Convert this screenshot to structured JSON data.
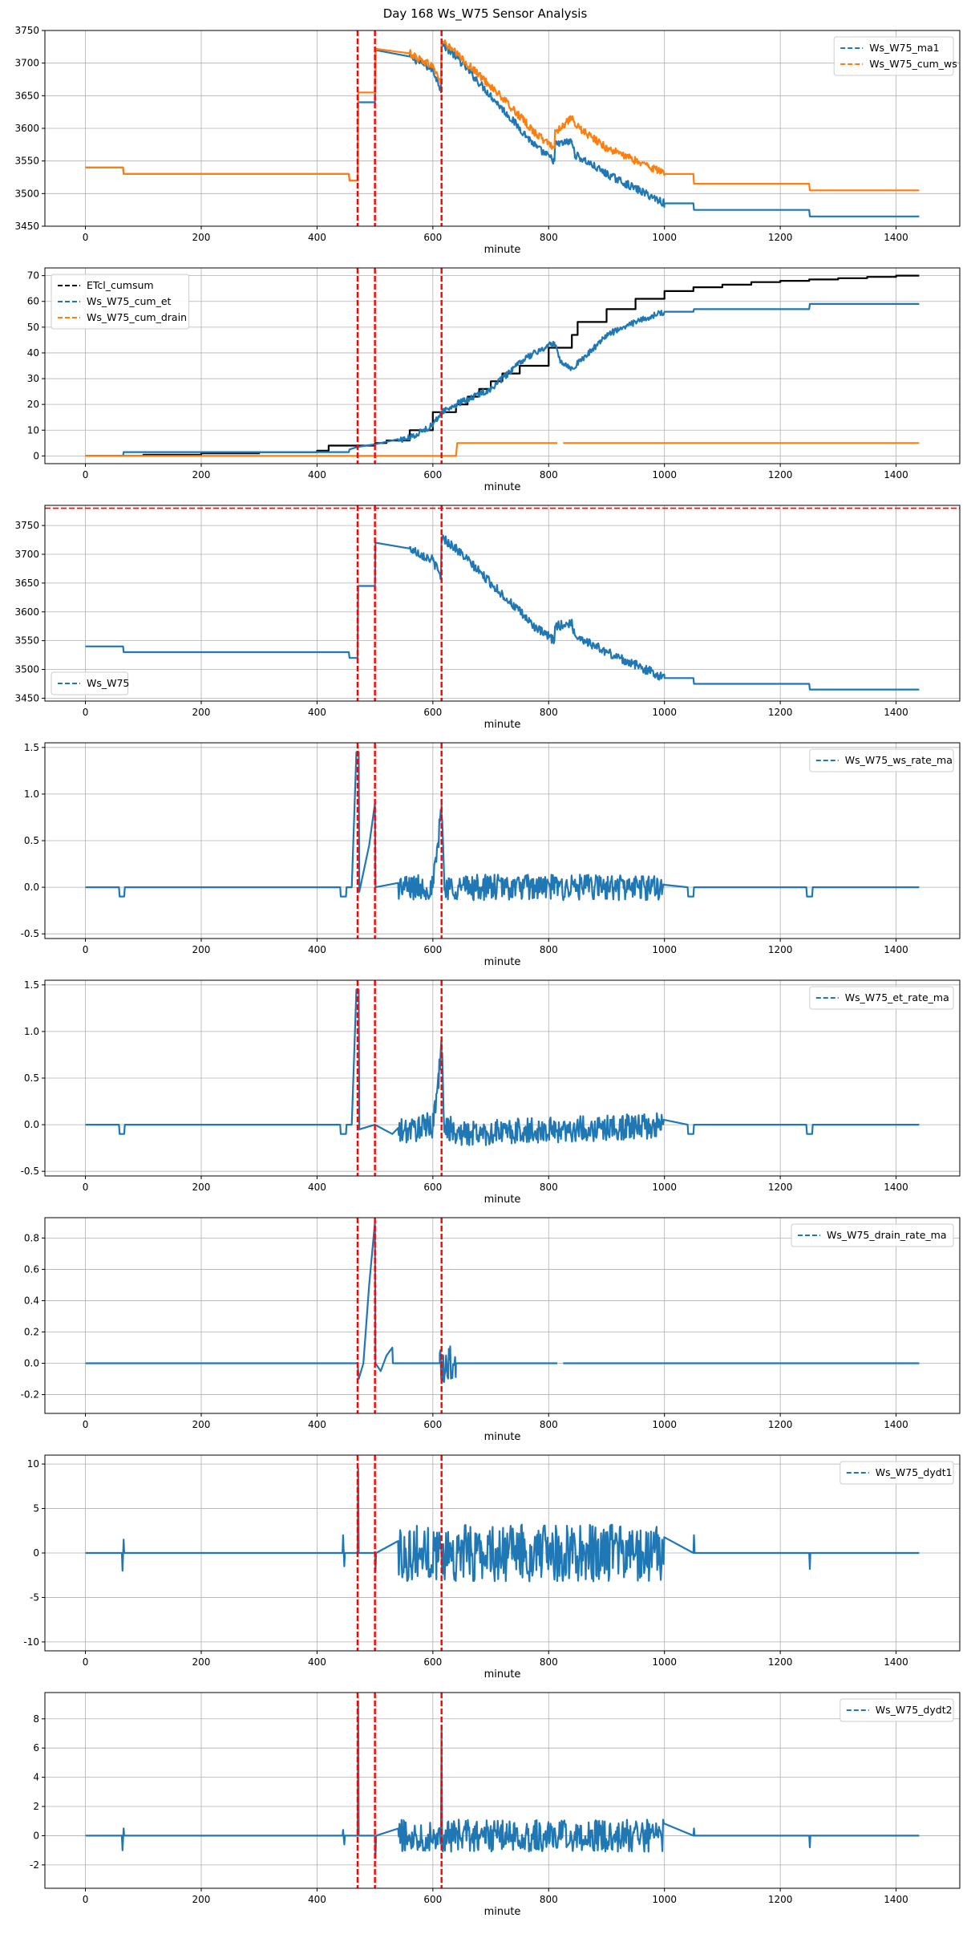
{
  "figure_title": "Day 168 Ws_W75 Sensor Analysis",
  "colors": {
    "blue": "#1f77b4",
    "orange": "#ff7f0e",
    "black": "#000000",
    "red": "#ff0000",
    "grid": "#b0b0b0"
  },
  "chart_data": [
    {
      "type": "line",
      "xlabel": "minute",
      "xlim": [
        -70,
        1510
      ],
      "xticks": [
        0,
        200,
        400,
        600,
        800,
        1000,
        1200,
        1400
      ],
      "ylim": [
        3450,
        3750
      ],
      "yticks": [
        3450,
        3500,
        3550,
        3600,
        3650,
        3700,
        3750
      ],
      "yticklabels": [
        "3450",
        "3500",
        "3550",
        "3600",
        "3650",
        "3700",
        "3750"
      ],
      "legend": "top-right",
      "vlines": [
        470,
        500,
        615
      ],
      "series": [
        {
          "name": "Ws_W75_ma1",
          "color": "#1f77b4",
          "noise": 6,
          "noiseRange": [
            560,
            1000
          ],
          "x": [
            0,
            65,
            66,
            455,
            456,
            470,
            471,
            500,
            501,
            560,
            600,
            614,
            615,
            640,
            700,
            780,
            810,
            811,
            840,
            845,
            900,
            990,
            1000,
            1050,
            1051,
            1250,
            1251,
            1440
          ],
          "y": [
            3540,
            3540,
            3530,
            3530,
            3520,
            3520,
            3640,
            3640,
            3720,
            3710,
            3690,
            3660,
            3730,
            3710,
            3650,
            3570,
            3550,
            3575,
            3580,
            3560,
            3530,
            3490,
            3485,
            3485,
            3475,
            3475,
            3465,
            3465
          ]
        },
        {
          "name": "Ws_W75_cum_ws",
          "color": "#ff7f0e",
          "noise": 6,
          "noiseRange": [
            560,
            1000
          ],
          "x": [
            0,
            65,
            66,
            455,
            456,
            470,
            471,
            500,
            501,
            560,
            600,
            614,
            615,
            640,
            700,
            780,
            810,
            811,
            840,
            845,
            900,
            990,
            1000,
            1050,
            1051,
            1250,
            1251,
            1440
          ],
          "y": [
            3540,
            3540,
            3530,
            3530,
            3520,
            3520,
            3655,
            3655,
            3722,
            3715,
            3695,
            3670,
            3735,
            3715,
            3665,
            3590,
            3570,
            3595,
            3615,
            3605,
            3570,
            3535,
            3530,
            3530,
            3515,
            3515,
            3505,
            3505
          ]
        }
      ]
    },
    {
      "type": "line",
      "xlabel": "minute",
      "xlim": [
        -70,
        1510
      ],
      "xticks": [
        0,
        200,
        400,
        600,
        800,
        1000,
        1200,
        1400
      ],
      "ylim": [
        -3,
        73
      ],
      "yticks": [
        0,
        10,
        20,
        30,
        40,
        50,
        60,
        70
      ],
      "yticklabels": [
        "0",
        "10",
        "20",
        "30",
        "40",
        "50",
        "60",
        "70"
      ],
      "legend": "top-left",
      "vlines": [
        470,
        500,
        615
      ],
      "series": [
        {
          "name": "ETcl_cumsum",
          "color": "#000000",
          "step": true,
          "x": [
            0,
            100,
            200,
            300,
            400,
            420,
            500,
            520,
            560,
            600,
            640,
            660,
            680,
            700,
            720,
            750,
            800,
            840,
            850,
            900,
            950,
            1000,
            1050,
            1100,
            1150,
            1200,
            1250,
            1300,
            1350,
            1400,
            1440
          ],
          "y": [
            0,
            0.5,
            1,
            1.5,
            2,
            4,
            5,
            6,
            10,
            17,
            20,
            23,
            26,
            29,
            32,
            35,
            42,
            47,
            52,
            57,
            61,
            64,
            65.5,
            66.5,
            67.5,
            68,
            68.5,
            69,
            69.5,
            70,
            70
          ]
        },
        {
          "name": "Ws_W75_cum_et",
          "color": "#1f77b4",
          "noise": 1.2,
          "noiseRange": [
            540,
            1000
          ],
          "x": [
            0,
            65,
            66,
            455,
            456,
            470,
            500,
            560,
            600,
            615,
            640,
            700,
            760,
            810,
            820,
            840,
            870,
            900,
            950,
            1000,
            1050,
            1051,
            1250,
            1251,
            1440
          ],
          "y": [
            0,
            0,
            1.5,
            1.5,
            2.5,
            3.5,
            4.5,
            7,
            12,
            17,
            20,
            26,
            38,
            44,
            37,
            34,
            40,
            47,
            52,
            56,
            56,
            57,
            57,
            59,
            59
          ]
        },
        {
          "name": "Ws_W75_cum_drain",
          "color": "#ff7f0e",
          "x": [
            0,
            470,
            500,
            501,
            615,
            640,
            642,
            815,
            null,
            825,
            1440
          ],
          "y": [
            0,
            0,
            0,
            0,
            0,
            0,
            5,
            5,
            null,
            5,
            5
          ]
        }
      ]
    },
    {
      "type": "line",
      "xlabel": "minute",
      "xlim": [
        -70,
        1510
      ],
      "xticks": [
        0,
        200,
        400,
        600,
        800,
        1000,
        1200,
        1400
      ],
      "ylim": [
        3445,
        3785
      ],
      "yticks": [
        3450,
        3500,
        3550,
        3600,
        3650,
        3700,
        3750
      ],
      "yticklabels": [
        "3450",
        "3500",
        "3550",
        "3600",
        "3650",
        "3700",
        "3750"
      ],
      "legend": "bottom-left",
      "vlines": [
        470,
        500,
        615
      ],
      "hline": 3780,
      "series": [
        {
          "name": "Ws_W75",
          "color": "#1f77b4",
          "noise": 8,
          "noiseRange": [
            560,
            1000
          ],
          "x": [
            0,
            65,
            66,
            455,
            456,
            470,
            471,
            500,
            501,
            560,
            600,
            614,
            615,
            640,
            700,
            780,
            810,
            811,
            840,
            845,
            900,
            990,
            1000,
            1050,
            1051,
            1250,
            1251,
            1440
          ],
          "y": [
            3540,
            3540,
            3530,
            3530,
            3520,
            3520,
            3645,
            3645,
            3720,
            3710,
            3690,
            3660,
            3730,
            3710,
            3650,
            3570,
            3550,
            3575,
            3580,
            3560,
            3530,
            3490,
            3485,
            3485,
            3475,
            3475,
            3465,
            3465
          ]
        }
      ]
    },
    {
      "type": "line",
      "xlabel": "minute",
      "xlim": [
        -70,
        1510
      ],
      "xticks": [
        0,
        200,
        400,
        600,
        800,
        1000,
        1200,
        1400
      ],
      "ylim": [
        -0.55,
        1.55
      ],
      "yticks": [
        -0.5,
        0.0,
        0.5,
        1.0,
        1.5
      ],
      "yticklabels": [
        "-0.5",
        "0.0",
        "0.5",
        "1.0",
        "1.5"
      ],
      "legend": "top-right",
      "vlines": [
        470,
        500,
        615
      ],
      "series": [
        {
          "name": "Ws_W75_ws_rate_ma",
          "color": "#1f77b4",
          "noise": 0.14,
          "noiseRange": [
            540,
            1000
          ],
          "x": [
            0,
            58,
            59,
            67,
            68,
            440,
            441,
            450,
            451,
            460,
            468,
            472,
            473,
            490,
            500,
            501,
            600,
            610,
            615,
            620,
            1040,
            1041,
            1050,
            1051,
            1245,
            1246,
            1255,
            1256,
            1440
          ],
          "y": [
            0,
            0,
            -0.1,
            -0.1,
            0,
            0,
            -0.1,
            -0.1,
            0,
            0,
            1.45,
            1.45,
            -0.05,
            0.45,
            0.9,
            0,
            0,
            0.5,
            0.9,
            0,
            0,
            -0.1,
            -0.1,
            0,
            0,
            -0.1,
            -0.1,
            0,
            0
          ]
        }
      ]
    },
    {
      "type": "line",
      "xlabel": "minute",
      "xlim": [
        -70,
        1510
      ],
      "xticks": [
        0,
        200,
        400,
        600,
        800,
        1000,
        1200,
        1400
      ],
      "ylim": [
        -0.55,
        1.55
      ],
      "yticks": [
        -0.5,
        0.0,
        0.5,
        1.0,
        1.5
      ],
      "yticklabels": [
        "-0.5",
        "0.0",
        "0.5",
        "1.0",
        "1.5"
      ],
      "legend": "top-right",
      "vlines": [
        470,
        500,
        615
      ],
      "series": [
        {
          "name": "Ws_W75_et_rate_ma",
          "color": "#1f77b4",
          "noise": 0.14,
          "noiseRange": [
            540,
            1000
          ],
          "x": [
            0,
            58,
            59,
            67,
            68,
            440,
            441,
            450,
            451,
            460,
            468,
            472,
            473,
            500,
            530,
            600,
            610,
            615,
            620,
            640,
            1040,
            1041,
            1050,
            1051,
            1245,
            1246,
            1255,
            1256,
            1440
          ],
          "y": [
            0,
            0,
            -0.1,
            -0.1,
            0,
            0,
            -0.1,
            -0.1,
            0,
            0,
            1.45,
            1.45,
            -0.05,
            0,
            -0.1,
            0,
            0.5,
            0.85,
            0,
            -0.1,
            0,
            -0.1,
            -0.1,
            0,
            0,
            -0.1,
            -0.1,
            0,
            0
          ]
        }
      ]
    },
    {
      "type": "line",
      "xlabel": "minute",
      "xlim": [
        -70,
        1510
      ],
      "xticks": [
        0,
        200,
        400,
        600,
        800,
        1000,
        1200,
        1400
      ],
      "ylim": [
        -0.32,
        0.93
      ],
      "yticks": [
        -0.2,
        0.0,
        0.2,
        0.4,
        0.6,
        0.8
      ],
      "yticklabels": [
        "-0.2",
        "0.0",
        "0.2",
        "0.4",
        "0.6",
        "0.8"
      ],
      "legend": "top-right",
      "vlines": [
        470,
        500,
        615
      ],
      "series": [
        {
          "name": "Ws_W75_drain_rate_ma",
          "color": "#1f77b4",
          "noise": 0.16,
          "noiseRange": [
            612,
            640
          ],
          "x": [
            0,
            470,
            472,
            480,
            490,
            500,
            501,
            510,
            520,
            530,
            531,
            612,
            640,
            641,
            815,
            null,
            825,
            1440
          ],
          "y": [
            0,
            0,
            -0.1,
            0,
            0.5,
            0.9,
            0,
            -0.05,
            0.05,
            0.1,
            0,
            0,
            0,
            0,
            0,
            null,
            0,
            0
          ]
        }
      ]
    },
    {
      "type": "line",
      "xlabel": "minute",
      "xlim": [
        -70,
        1510
      ],
      "xticks": [
        0,
        200,
        400,
        600,
        800,
        1000,
        1200,
        1400
      ],
      "ylim": [
        -11,
        11
      ],
      "yticks": [
        -10,
        -5,
        0,
        5,
        10
      ],
      "yticklabels": [
        "-10",
        "-5",
        "0",
        "5",
        "10"
      ],
      "legend": "top-right",
      "vlines": [
        470,
        500,
        615
      ],
      "series": [
        {
          "name": "Ws_W75_dydt1",
          "color": "#1f77b4",
          "noise": 3.2,
          "noiseRange": [
            540,
            1000
          ],
          "x": [
            0,
            63,
            64,
            66,
            67,
            444,
            445,
            447,
            448,
            470,
            471,
            472,
            500,
            501,
            502,
            1050,
            1051,
            1052,
            1250,
            1251,
            1252,
            1440
          ],
          "y": [
            0,
            0,
            -2,
            1.5,
            0,
            0,
            2,
            -1.5,
            0,
            0,
            9.5,
            0,
            0,
            -2,
            0,
            0,
            2,
            0,
            0,
            -1.8,
            0,
            0
          ]
        }
      ]
    },
    {
      "type": "line",
      "xlabel": "minute",
      "xlim": [
        -70,
        1510
      ],
      "xticks": [
        0,
        200,
        400,
        600,
        800,
        1000,
        1200,
        1400
      ],
      "ylim": [
        -3.6,
        9.8
      ],
      "yticks": [
        -2,
        0,
        2,
        4,
        6,
        8
      ],
      "yticklabels": [
        "-2",
        "0",
        "2",
        "4",
        "6",
        "8"
      ],
      "legend": "top-right",
      "vlines": [
        470,
        500,
        615
      ],
      "series": [
        {
          "name": "Ws_W75_dydt2",
          "color": "#1f77b4",
          "noise": 1.1,
          "noiseRange": [
            540,
            1000
          ],
          "x": [
            0,
            63,
            64,
            66,
            67,
            444,
            445,
            447,
            448,
            470,
            471,
            472,
            500,
            501,
            502,
            614,
            615,
            616,
            1050,
            1051,
            1052,
            1250,
            1251,
            1252,
            1440
          ],
          "y": [
            0,
            0,
            -1,
            0.5,
            0,
            0,
            0.4,
            -0.6,
            0,
            0,
            9.2,
            0,
            0,
            -1.5,
            0,
            0,
            7.5,
            0,
            0,
            0.5,
            0,
            0,
            -0.8,
            0,
            0
          ]
        }
      ]
    }
  ]
}
